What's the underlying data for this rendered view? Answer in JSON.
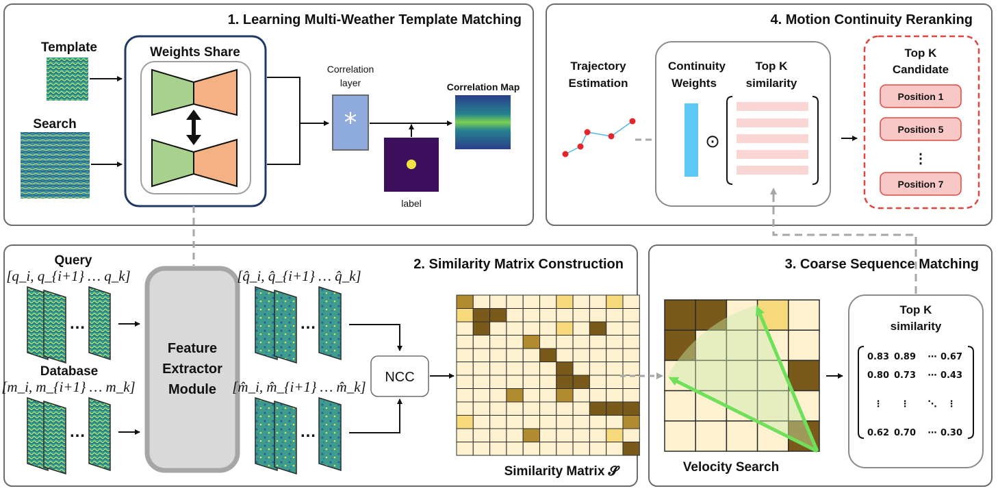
{
  "panels": {
    "p1": {
      "title": "1. Learning Multi-Weather Template Matching"
    },
    "p2": {
      "title": "2. Similarity Matrix Construction"
    },
    "p3": {
      "title": "3. Coarse Sequence Matching"
    },
    "p4": {
      "title": "4. Motion Continuity Reranking"
    }
  },
  "p1": {
    "template_label": "Template",
    "search_label": "Search",
    "weights_share": "Weights Share",
    "corr_layer_1": "Correlation",
    "corr_layer_2": "layer",
    "corr_symbol": "*",
    "label": "label",
    "corr_map": "Correlation Map"
  },
  "p2": {
    "query_label": "Query",
    "query_seq": "[q_i, q_{i+1} … q_k]",
    "database_label": "Database",
    "database_seq": "[m_i, m_{i+1} … m_k]",
    "dots": "…",
    "fe_line1": "Feature",
    "fe_line2": "Extractor",
    "fe_line3": "Module",
    "qhat_seq": "[q̂_i, q̂_{i+1} … q̂_k]",
    "mhat_seq": "[m̂_i, m̂_{i+1} … m̂_k]",
    "ncc": "NCC",
    "sim_label": "Similarity Matrix 𝓢"
  },
  "p3": {
    "velocity_label": "Velocity Search",
    "topk_1": "Top K",
    "topk_2": "similarity",
    "matrix_rows": [
      [
        "0.83",
        "0.89",
        "⋯",
        "0.67"
      ],
      [
        "0.80",
        "0.73",
        "⋯",
        "0.43"
      ],
      [
        "⋮",
        "⋮",
        "⋱",
        "⋮"
      ],
      [
        "0.62",
        "0.70",
        "⋯",
        "0.30"
      ]
    ]
  },
  "p4": {
    "traj_1": "Trajectory",
    "traj_2": "Estimation",
    "cw_1": "Continuity",
    "cw_2": "Weights",
    "topk_1": "Top K",
    "topk_2": "similarity",
    "odot": "⊙",
    "cand_1": "Top K",
    "cand_2": "Candidate",
    "positions": [
      "Position 1",
      "Position 5",
      "Position 7"
    ],
    "vdots": "⋮"
  },
  "colors": {
    "panel_border": "#6b6b6b",
    "ws_border": "#1f3864",
    "green_block": "#a9d18e",
    "orange_block": "#f4b183",
    "corr_layer": "#8faadc",
    "label_bg": "#3b0f5c",
    "label_dot": "#f5e342",
    "fe_fill": "#d9d9d9",
    "cell_light": "#fdf1cf",
    "cell_mid": "#b18b2f",
    "cell_dark": "#7a5a1a",
    "cell_yellow": "#f6d97a",
    "cont_weight": "#5bc8f5",
    "topk_bar": "#f9d5d3",
    "cand_border": "#e0463f",
    "pos_fill": "#f8c8c6",
    "traj_dot": "#e3262c",
    "traj_line": "#4ab8e8",
    "arrow_green": "#6ee05a"
  },
  "sim_matrix": [
    [
      2,
      0,
      0,
      0,
      0,
      0,
      3,
      0,
      0,
      3,
      0
    ],
    [
      3,
      1,
      1,
      0,
      0,
      0,
      0,
      0,
      0,
      0,
      0
    ],
    [
      0,
      1,
      0,
      0,
      0,
      0,
      3,
      0,
      1,
      0,
      0
    ],
    [
      0,
      0,
      0,
      0,
      2,
      0,
      0,
      0,
      0,
      0,
      0
    ],
    [
      0,
      0,
      0,
      0,
      0,
      1,
      0,
      0,
      0,
      0,
      0
    ],
    [
      0,
      0,
      0,
      0,
      0,
      0,
      1,
      0,
      0,
      0,
      0
    ],
    [
      0,
      0,
      0,
      0,
      0,
      0,
      1,
      1,
      0,
      0,
      0
    ],
    [
      0,
      0,
      0,
      2,
      0,
      0,
      2,
      0,
      0,
      0,
      0
    ],
    [
      0,
      0,
      0,
      0,
      0,
      0,
      0,
      0,
      1,
      1,
      1
    ],
    [
      3,
      0,
      0,
      0,
      0,
      0,
      0,
      0,
      0,
      0,
      2
    ],
    [
      0,
      0,
      0,
      0,
      2,
      0,
      0,
      0,
      0,
      3,
      0
    ],
    [
      0,
      0,
      0,
      0,
      0,
      0,
      0,
      0,
      0,
      0,
      1
    ]
  ],
  "velocity_matrix": [
    [
      1,
      1,
      0,
      3,
      0
    ],
    [
      1,
      0,
      0,
      0,
      0
    ],
    [
      0,
      0,
      0,
      0,
      1
    ],
    [
      0,
      0,
      0,
      0,
      0
    ],
    [
      0,
      0,
      0,
      0,
      1
    ]
  ]
}
